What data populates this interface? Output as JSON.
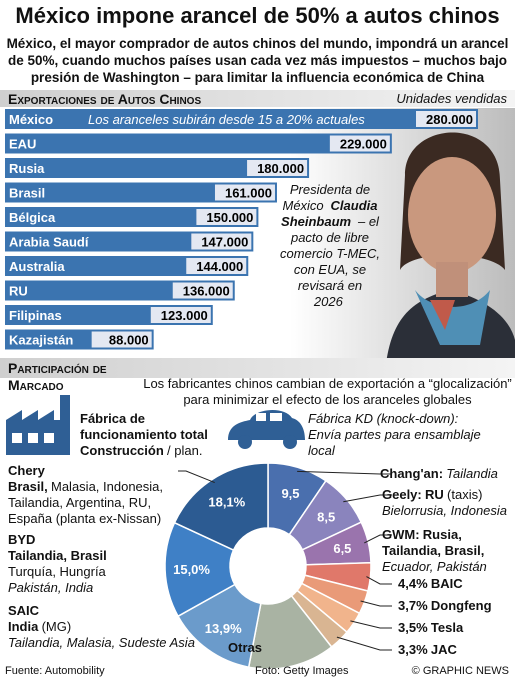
{
  "title": "México impone arancel de 50% a autos chinos",
  "subtitle": "México, el mayor comprador de autos chinos del mundo, impondrá un arancel de 50%, cuando muchos países usan cada vez más impuestos – muchos bajo presión de Washington – para limitar la influencia económica de China",
  "photo_caption": {
    "before": "Presidenta de México",
    "name": "Claudia Sheinbaum",
    "after": "– el pacto de libre comercio T-MEC, con EUA, se revisará en 2026"
  },
  "factories": {
    "heading": "Los fabricantes chinos cambian de exportación a “glocalización” para minimizar el efecto de los aranceles globales",
    "full": "Fábrica de funcionamiento total",
    "construction": "Construcción",
    "plan": "/ plan.",
    "kd_title": "Fábrica KD (knock-down):",
    "kd_text": "Envía partes para ensamblaje local"
  },
  "footer": {
    "source": "Fuente: Automobility",
    "photo": "Foto: Getty Images",
    "credit": "© GRAPHIC NEWS"
  },
  "chart_data": [
    {
      "type": "bar",
      "title": "Exportaciones de Autos Chinos",
      "unit_label": "Unidades vendidas",
      "annotation": "Los aranceles subirán desde 15 a 20% actuales",
      "categories": [
        "México",
        "EAU",
        "Rusia",
        "Brasil",
        "Bélgica",
        "Arabia Saudí",
        "Australia",
        "RU",
        "Filipinas",
        "Kazajistán"
      ],
      "values": [
        280000,
        229000,
        180000,
        161000,
        150000,
        147000,
        144000,
        136000,
        123000,
        88000
      ],
      "value_labels": [
        "280.000",
        "229.000",
        "180.000",
        "161.000",
        "150.000",
        "147.000",
        "144.000",
        "136.000",
        "123.000",
        "88.000"
      ],
      "color": "#3b74b0"
    },
    {
      "type": "pie",
      "title": "Participación de Marcado",
      "categories": [
        "Chang'an:",
        "Geely:",
        "GWM:",
        "BAIC",
        "Dongfeng",
        "Tesla",
        "JAC",
        "Otras",
        "SAIC",
        "BYD",
        "Chery"
      ],
      "values": [
        9.5,
        8.5,
        6.5,
        4.4,
        3.7,
        3.5,
        3.3,
        13.6,
        13.9,
        15.0,
        18.1
      ],
      "value_labels": [
        "9,5",
        "8,5",
        "6,5",
        "4,4%",
        "3,7%",
        "3,5%",
        "3,3%",
        null,
        "13,9%",
        "15,0%",
        "18,1%"
      ],
      "colors": [
        "#4a6fae",
        "#8a84bd",
        "#9a74ad",
        "#e0786a",
        "#e99a78",
        "#f1b48c",
        "#d9b592",
        "#a9b3a3",
        "#6b9bcb",
        "#3f80c6",
        "#2c5b92"
      ],
      "plants": [
        {
          "kd": "Tailandia"
        },
        {
          "full": "RU",
          "planned": "(taxis)",
          "kd": "Bielorrusia, Indonesia"
        },
        {
          "full": "Rusia, Tailandia, Brasil,",
          "kd": "Ecuador, Pakistán"
        },
        {},
        {},
        {},
        {},
        {},
        {
          "full": "India",
          "planned": "(MG)",
          "kd": "Tailandia, Malasia, Sudeste Asia"
        },
        {
          "full": "Tailandia, Brasil",
          "planned": "Turquía, Hungría",
          "kd": "Pakistán, India"
        },
        {
          "full": "Brasil,",
          "planned": "Malasia, Indonesia, Tailandia, Argentina, RU, España (planta ex-Nissan)"
        }
      ]
    }
  ]
}
